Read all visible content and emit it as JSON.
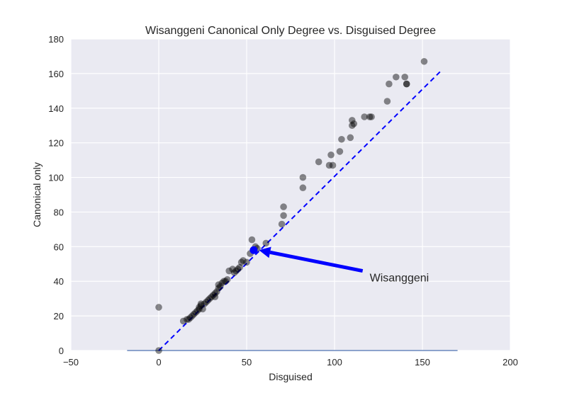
{
  "chart_data": {
    "type": "scatter",
    "title": "Wisanggeni Canonical Only Degree vs. Disguised Degree",
    "xlabel": "Disguised",
    "ylabel": "Canonical only",
    "xlim": [
      -50,
      200
    ],
    "ylim": [
      0,
      180
    ],
    "xticks": [
      "−50",
      "0",
      "50",
      "100",
      "150",
      "200"
    ],
    "yticks": [
      "0",
      "20",
      "40",
      "60",
      "80",
      "100",
      "120",
      "140",
      "160",
      "180"
    ],
    "xtick_values": [
      -50,
      0,
      50,
      100,
      150,
      200
    ],
    "ytick_values": [
      0,
      20,
      40,
      60,
      80,
      100,
      120,
      140,
      160,
      180
    ],
    "grid": true,
    "background": "#eaeaf2",
    "point_color": "#000000",
    "highlight_color": "#0000ff",
    "reference_line": {
      "x": [
        0,
        160
      ],
      "y": [
        0,
        161
      ],
      "color": "#0000ff",
      "style": "dashed"
    },
    "baseline": {
      "x": [
        -18,
        170
      ],
      "y": 0,
      "color": "#4c72b0"
    },
    "points": [
      [
        0,
        0
      ],
      [
        0,
        25
      ],
      [
        14,
        17
      ],
      [
        16,
        18
      ],
      [
        17,
        18
      ],
      [
        18,
        19
      ],
      [
        19,
        20
      ],
      [
        20,
        21
      ],
      [
        21,
        22
      ],
      [
        22,
        23
      ],
      [
        23,
        24
      ],
      [
        23,
        25
      ],
      [
        24,
        26
      ],
      [
        25,
        24
      ],
      [
        24,
        27
      ],
      [
        26,
        27
      ],
      [
        27,
        28
      ],
      [
        28,
        29
      ],
      [
        29,
        30
      ],
      [
        30,
        31
      ],
      [
        31,
        32
      ],
      [
        32,
        31
      ],
      [
        32,
        33
      ],
      [
        33,
        34
      ],
      [
        34,
        36
      ],
      [
        34,
        38
      ],
      [
        35,
        37
      ],
      [
        36,
        39
      ],
      [
        37,
        40
      ],
      [
        38,
        40
      ],
      [
        39,
        41
      ],
      [
        40,
        46
      ],
      [
        42,
        47
      ],
      [
        43,
        45
      ],
      [
        44,
        46
      ],
      [
        45,
        47
      ],
      [
        46,
        48
      ],
      [
        47,
        51
      ],
      [
        48,
        52
      ],
      [
        50,
        51
      ],
      [
        52,
        56
      ],
      [
        53,
        64
      ],
      [
        55,
        60
      ],
      [
        56,
        59
      ],
      [
        61,
        62
      ],
      [
        70,
        73
      ],
      [
        71,
        78
      ],
      [
        71,
        83
      ],
      [
        82,
        94
      ],
      [
        82,
        100
      ],
      [
        91,
        109
      ],
      [
        97,
        107
      ],
      [
        98,
        113
      ],
      [
        99,
        107
      ],
      [
        103,
        115
      ],
      [
        104,
        122
      ],
      [
        109,
        123
      ],
      [
        110,
        130
      ],
      [
        110,
        133
      ],
      [
        111,
        131
      ],
      [
        117,
        135
      ],
      [
        120,
        135
      ],
      [
        121,
        135
      ],
      [
        130,
        144
      ],
      [
        131,
        154
      ],
      [
        135,
        158
      ],
      [
        140,
        158
      ],
      [
        141,
        154
      ],
      [
        141,
        154
      ],
      [
        151,
        167
      ]
    ],
    "highlight": {
      "x": 54,
      "y": 58
    },
    "annotation": {
      "text": "Wisanggeni",
      "x": 120,
      "y": 42,
      "arrow_from": [
        116,
        46
      ],
      "arrow_to": [
        57,
        58
      ]
    }
  }
}
